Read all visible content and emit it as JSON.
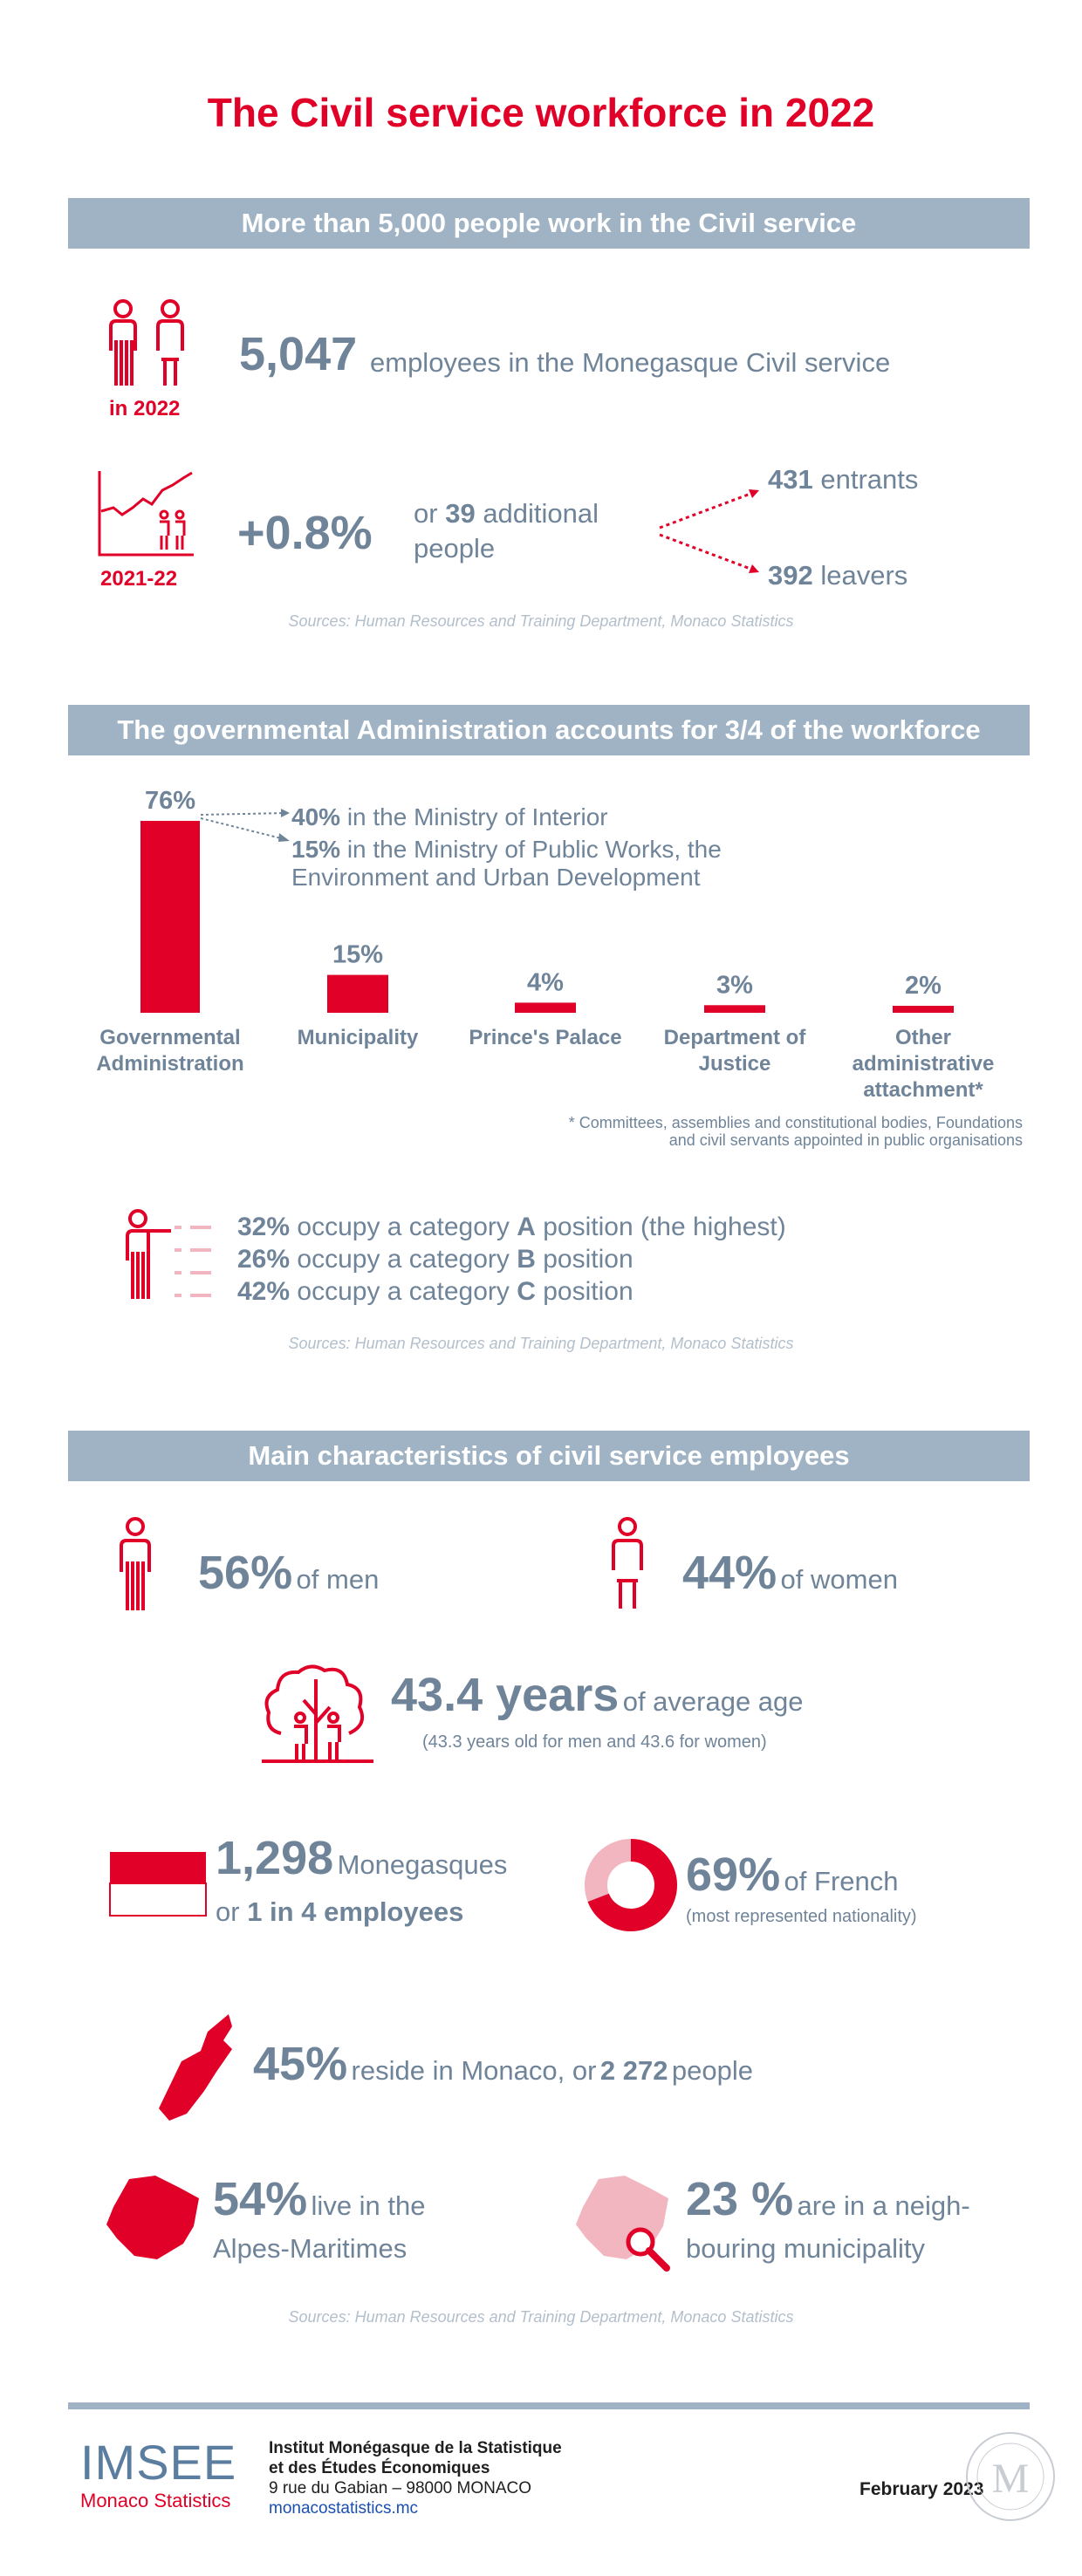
{
  "title": "The Civil service workforce in 2022",
  "s1": {
    "band": "More than 5,000 people work in the Civil service",
    "year_label": "in 2022",
    "employees_num": "5,047",
    "employees_text": "employees in the Monegasque Civil service",
    "period_label": "2021-22",
    "growth_pct": "+0.8%",
    "or": "or",
    "additional_num": "39",
    "additional_text": "additional",
    "people": "people",
    "entrants_num": "431",
    "entrants_text": "entrants",
    "leavers_num": "392",
    "leavers_text": "leavers",
    "source": "Sources: Human Resources and Training Department, Monaco Statistics"
  },
  "s2": {
    "band": "The governmental Administration accounts for 3/4 of the workforce",
    "interior_pct": "40%",
    "interior_text": "in the Ministry of Interior",
    "works_pct": "15%",
    "works_text": "in the Ministry of Public Works, the",
    "works_text2": "Environment and Urban Development",
    "footnote1": "* Committees, assemblies and constitutional bodies, Foundations",
    "footnote2": "and civil servants appointed in public organisations",
    "cat_a_pct": "32%",
    "cat_a_pre": "occupy a category",
    "cat_a_letter": "A",
    "cat_a_post": "position (the highest)",
    "cat_b_pct": "26%",
    "cat_b_pre": "occupy a category",
    "cat_b_letter": "B",
    "cat_b_post": "position",
    "cat_c_pct": "42%",
    "cat_c_pre": "occupy a category",
    "cat_c_letter": "C",
    "cat_c_post": "position",
    "source": "Sources: Human Resources and Training Department, Monaco Statistics"
  },
  "chart_data": {
    "type": "bar",
    "categories": [
      "Governmental Administration",
      "Municipality",
      "Prince's Palace",
      "Department of Justice",
      "Other administrative attachment*"
    ],
    "values": [
      76,
      15,
      4,
      3,
      2
    ],
    "value_labels": [
      "76%",
      "15%",
      "4%",
      "3%",
      "2%"
    ],
    "ylim": [
      0,
      76
    ],
    "bar_color": "#e10027"
  },
  "s3": {
    "band": "Main characteristics of civil service employees",
    "men_pct": "56%",
    "men_text": "of men",
    "women_pct": "44%",
    "women_text": "of women",
    "age_num": "43.4 years",
    "age_text": "of average age",
    "age_note": "(43.3 years old for men and 43.6 for women)",
    "mon_num": "1,298",
    "mon_text": "Monegasques",
    "mon_or": "or",
    "mon_ratio": "1 in 4 employees",
    "fr_pct": "69%",
    "fr_text": "of French",
    "fr_note": "(most represented nationality)",
    "fr_share": 0.69,
    "res_pct": "45%",
    "res_text": "reside in Monaco, or",
    "res_num": "2 272",
    "res_people": "people",
    "am_pct": "54%",
    "am_text": "live in the",
    "am_text2": "Alpes-Maritimes",
    "nb_pct": "23 %",
    "nb_text": "are in a neigh-",
    "nb_text2": "bouring municipality",
    "source": "Sources: Human Resources and Training Department, Monaco Statistics"
  },
  "footer": {
    "logo": "IMSEE",
    "logo_sub": "Monaco Statistics",
    "inst1": "Institut Monégasque de la Statistique",
    "inst2": "et des Études Économiques",
    "address": "9 rue du Gabian – 98000 MONACO",
    "url": "monacostatistics.mc",
    "date": "February 2023",
    "seal_letter": "M"
  },
  "colors": {
    "accent": "#e10027",
    "slate": "#6f8499",
    "band": "#9fb3c4",
    "pink": "#f2b6c1"
  }
}
